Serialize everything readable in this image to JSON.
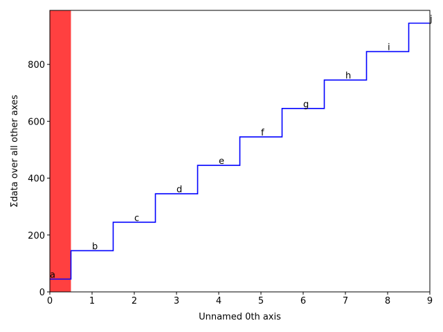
{
  "chart_data": {
    "type": "line",
    "drawstyle": "steps-mid",
    "title": "",
    "xlabel": "Unnamed 0th axis",
    "ylabel": "Σdata over all other axes",
    "xlim": [
      0,
      9
    ],
    "ylim": [
      0,
      990
    ],
    "xticks": [
      0,
      1,
      2,
      3,
      4,
      5,
      6,
      7,
      8,
      9
    ],
    "yticks": [
      0,
      200,
      400,
      600,
      800
    ],
    "grid": false,
    "legend": "none",
    "series": [
      {
        "color": "#0000ff",
        "x": [
          0,
          1,
          2,
          3,
          4,
          5,
          6,
          7,
          8,
          9
        ],
        "values": [
          45,
          145,
          245,
          345,
          445,
          545,
          645,
          745,
          845,
          945
        ],
        "labels": [
          "a",
          "b",
          "c",
          "d",
          "e",
          "f",
          "g",
          "h",
          "i",
          "j"
        ]
      }
    ],
    "highlight": {
      "x_start": 0,
      "x_end": 0.5,
      "color": "#ff0000",
      "alpha": 0.75
    }
  }
}
